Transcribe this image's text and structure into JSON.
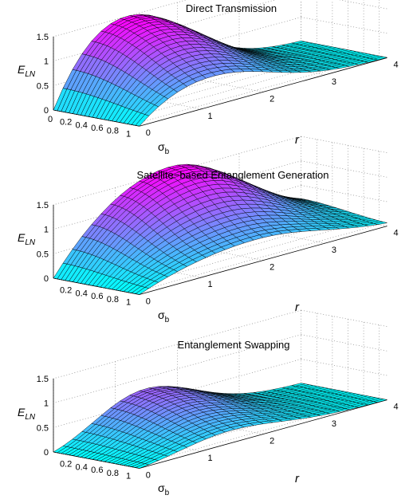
{
  "colormap": {
    "low": "#00ffff",
    "high": "#ff00ff"
  },
  "chart_data": [
    {
      "type": "surface",
      "title": "Direct Transmission",
      "zlabel": {
        "main": "E",
        "sub": "LN"
      },
      "xlabel": {
        "main": "σ",
        "sub": "b"
      },
      "ylabel": "r",
      "xlim": [
        0,
        1.1
      ],
      "ylim": [
        0,
        4
      ],
      "zlim": [
        0,
        1.5
      ],
      "x_ticks": [
        "0",
        "0.2",
        "0.4",
        "0.6",
        "0.8",
        "1"
      ],
      "y_ticks": [
        "0",
        "1",
        "2",
        "3",
        "4"
      ],
      "z_ticks": [
        "0",
        "0.5",
        "1",
        "1.5"
      ],
      "grid": true,
      "grid_size": [
        22,
        26
      ],
      "surface_params": {
        "peak": 1.5,
        "r_peak": 1.2,
        "r_width": 1.3,
        "r_shape": "shoulder",
        "decay_offset": 0.1,
        "decay_rate": 0.45
      }
    },
    {
      "type": "surface",
      "title": "Satellite−based Entanglement Generation",
      "zlabel": {
        "main": "E",
        "sub": "LN"
      },
      "xlabel": {
        "main": "σ",
        "sub": "b"
      },
      "ylabel": "r",
      "xlim": [
        0,
        1.1
      ],
      "ylim": [
        0,
        4
      ],
      "zlim": [
        0,
        1.5
      ],
      "x_ticks": [
        "0.2",
        "0.4",
        "0.6",
        "0.8",
        "1"
      ],
      "y_ticks": [
        "0",
        "1",
        "2",
        "3",
        "4"
      ],
      "z_ticks": [
        "0",
        "0.5",
        "1",
        "1.5"
      ],
      "grid": true,
      "grid_size": [
        22,
        26
      ],
      "surface_params": {
        "peak": 1.62,
        "r_peak": 1.9,
        "r_width": 1.5,
        "r_shape": "wide",
        "decay_offset": 0.15,
        "decay_rate": 0.75
      }
    },
    {
      "type": "surface",
      "title": "Entanglement Swapping",
      "zlabel": {
        "main": "E",
        "sub": "LN"
      },
      "xlabel": {
        "main": "σ",
        "sub": "b"
      },
      "ylabel": "r",
      "xlim": [
        0,
        1.1
      ],
      "ylim": [
        0,
        4
      ],
      "zlim": [
        0,
        1.5
      ],
      "x_ticks": [
        "0.2",
        "0.4",
        "0.6",
        "0.8",
        "1"
      ],
      "y_ticks": [
        "0",
        "1",
        "2",
        "3",
        "4"
      ],
      "z_ticks": [
        "0",
        "0.5",
        "1",
        "1.5"
      ],
      "grid": true,
      "grid_size": [
        22,
        26
      ],
      "surface_params": {
        "peak": 1.25,
        "r_peak": 1.0,
        "r_width": 0.85,
        "r_shape": "bump",
        "decay_offset": 0.05,
        "decay_rate": 0.5
      }
    }
  ]
}
